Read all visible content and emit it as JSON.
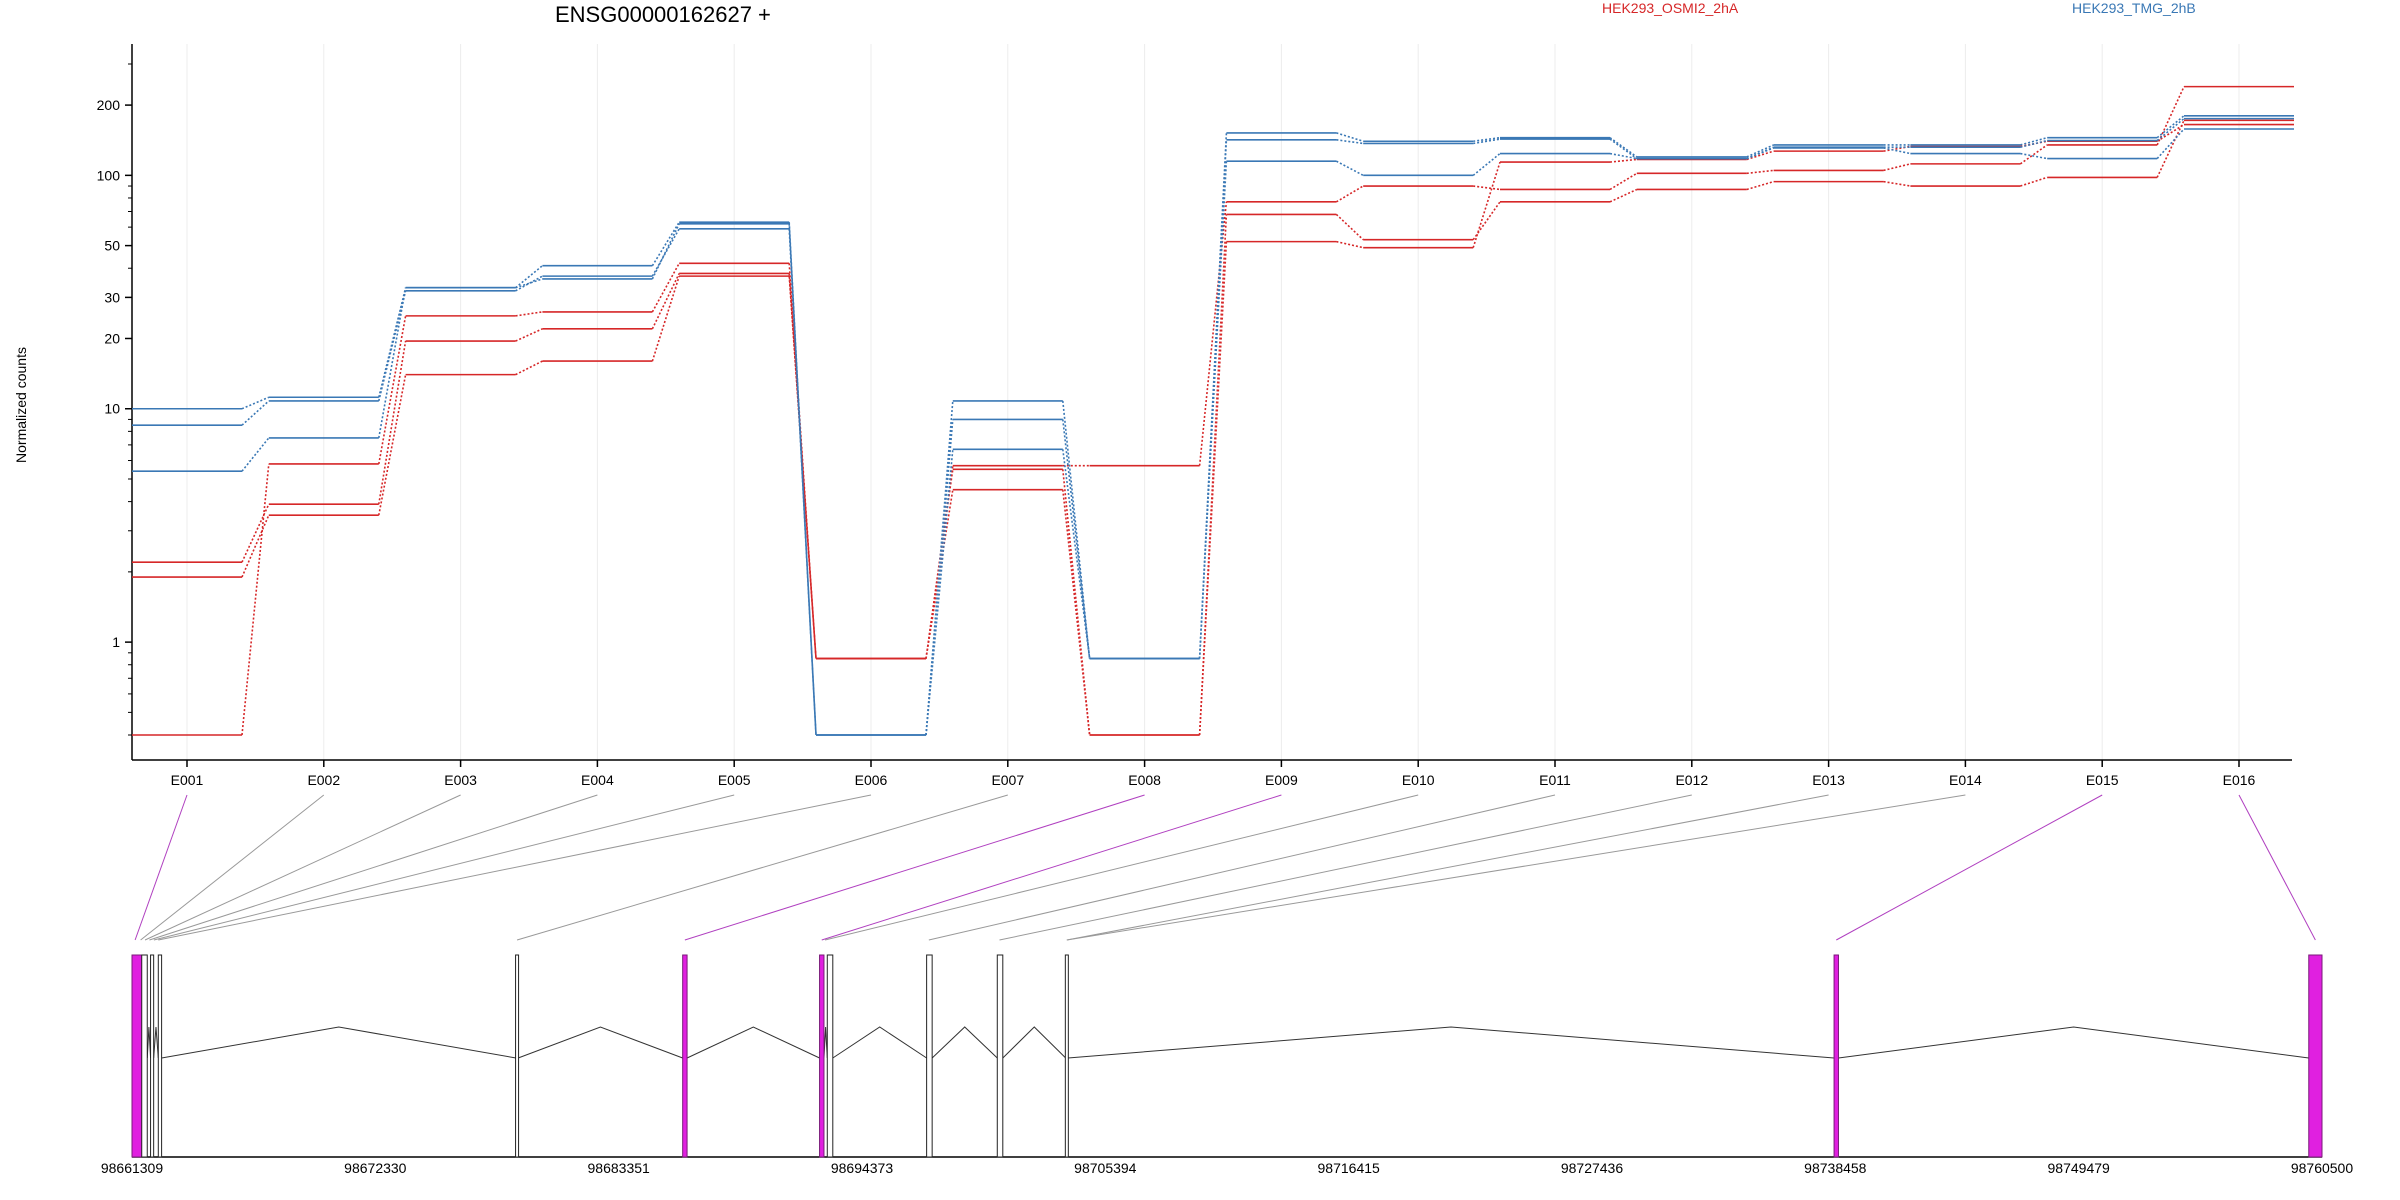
{
  "chart_data": {
    "type": "line",
    "title": "ENSG00000162627 +",
    "ylabel": "Normalized counts",
    "y_scale": "log",
    "ylim": [
      0.4,
      300
    ],
    "y_ticks": [
      1,
      10,
      20,
      30,
      50,
      100,
      200
    ],
    "grid": "vertical, light",
    "categories": [
      "E001",
      "E002",
      "E003",
      "E004",
      "E005",
      "E006",
      "E007",
      "E008",
      "E009",
      "E010",
      "E011",
      "E012",
      "E013",
      "E014",
      "E015",
      "E016"
    ],
    "legend": [
      {
        "name": "HEK293_OSMI2_2hA",
        "color": "#d62728"
      },
      {
        "name": "HEK293_TMG_2hB",
        "color": "#3a78b5"
      }
    ],
    "series": [
      {
        "group": "HEK293_OSMI2_2hA",
        "color": "#d62728",
        "values": [
          0.4,
          5.8,
          25,
          26,
          42,
          0.85,
          5.7,
          5.7,
          77,
          90,
          87,
          102,
          105,
          112,
          135,
          240
        ]
      },
      {
        "group": "HEK293_OSMI2_2hA",
        "color": "#d62728",
        "values": [
          2.2,
          3.9,
          19.5,
          22,
          38,
          0.85,
          5.5,
          0.4,
          68,
          53,
          77,
          87,
          94,
          90,
          98,
          172
        ]
      },
      {
        "group": "HEK293_OSMI2_2hA",
        "color": "#d62728",
        "values": [
          1.9,
          3.5,
          14,
          16,
          37,
          0.85,
          4.5,
          0.4,
          52,
          49,
          114,
          117,
          127,
          133,
          140,
          165
        ]
      },
      {
        "group": "HEK293_TMG_2hB",
        "color": "#3a78b5",
        "values": [
          10,
          11.2,
          33,
          41,
          63,
          0.4,
          10.8,
          0.85,
          152,
          140,
          145,
          120,
          135,
          135,
          145,
          180
        ]
      },
      {
        "group": "HEK293_TMG_2hB",
        "color": "#3a78b5",
        "values": [
          8.5,
          10.8,
          32,
          37,
          59,
          0.4,
          9,
          0.85,
          142,
          137,
          143,
          118,
          132,
          132,
          141,
          175
        ]
      },
      {
        "group": "HEK293_TMG_2hB",
        "color": "#3a78b5",
        "values": [
          5.4,
          7.5,
          33,
          36,
          62,
          0.4,
          6.7,
          0.85,
          115,
          100,
          124,
          118,
          131,
          124,
          118,
          158
        ]
      }
    ],
    "gene_model": {
      "coordinate_labels": [
        "98661309",
        "98672330",
        "98683351",
        "98694373",
        "98705394",
        "98716415",
        "98727436",
        "98738458",
        "98749479",
        "98760500"
      ],
      "range": [
        98661309,
        98760500
      ],
      "highlight_color": "#e020e0",
      "exon_starts": [
        98661309,
        98661750,
        98662150,
        98662500,
        98678700,
        98686250,
        98692450,
        98692800,
        98697300,
        98700500,
        98703600,
        98738400,
        98759900
      ],
      "exon_ends": [
        98661790,
        98662000,
        98662290,
        98662650,
        98678800,
        98686450,
        98692650,
        98693050,
        98697550,
        98700750,
        98703700,
        98738600,
        98760500
      ],
      "highlighted_exons": [
        0,
        5,
        6,
        11,
        12
      ],
      "exon_to_feature": [
        0,
        0,
        0,
        0,
        0,
        0,
        1,
        1,
        2,
        3,
        3,
        3,
        3,
        3,
        4,
        4,
        5,
        6,
        6,
        7,
        7,
        8,
        9,
        9,
        9,
        10,
        10,
        11,
        11,
        12,
        12
      ]
    }
  }
}
